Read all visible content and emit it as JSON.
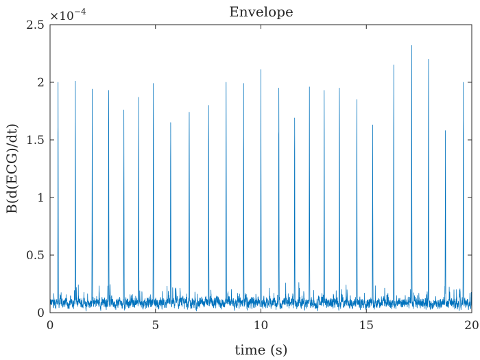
{
  "chart_data": {
    "type": "line",
    "title": "Envelope",
    "xlabel": "time (s)",
    "ylabel": "B(d(ECG)/dt)",
    "y_exponent_label": "×10",
    "y_exponent_power": "−4",
    "xlim": [
      0,
      20
    ],
    "ylim": [
      0,
      2.5
    ],
    "x_ticks": [
      0,
      5,
      10,
      15,
      20
    ],
    "x_tick_labels": [
      "0",
      "5",
      "10",
      "15",
      "20"
    ],
    "y_ticks": [
      0,
      0.5,
      1,
      1.5,
      2,
      2.5
    ],
    "y_tick_labels": [
      "0",
      "0.5",
      "1",
      "1.5",
      "2",
      "2.5"
    ],
    "grid": false,
    "line_color": "#0072BD",
    "peaks": {
      "t": [
        0.38,
        1.2,
        2.0,
        2.78,
        3.5,
        4.2,
        4.9,
        5.72,
        6.6,
        7.52,
        8.35,
        9.18,
        10.0,
        10.85,
        11.6,
        12.3,
        13.0,
        13.72,
        14.55,
        15.3,
        16.3,
        17.15,
        17.95,
        18.75,
        19.6
      ],
      "y": [
        2.0,
        2.01,
        1.94,
        1.93,
        1.76,
        1.87,
        1.99,
        1.65,
        1.74,
        1.8,
        2.0,
        1.99,
        2.11,
        1.95,
        1.69,
        1.96,
        1.93,
        1.95,
        1.85,
        1.63,
        2.15,
        2.32,
        2.2,
        1.58,
        2.0
      ]
    },
    "noise_floor": [
      0.0,
      0.3
    ]
  }
}
